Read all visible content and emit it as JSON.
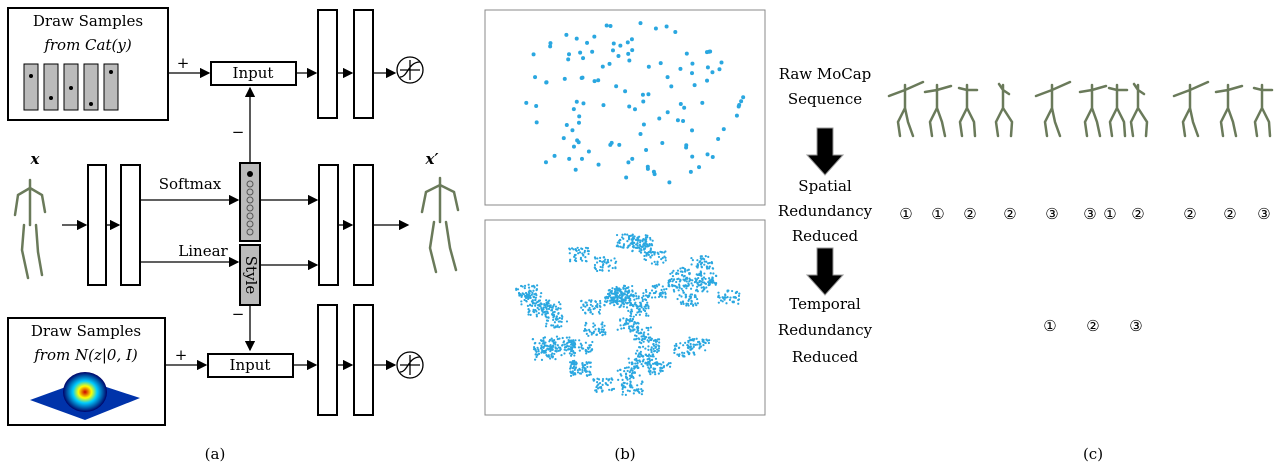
{
  "panel_a": {
    "top_box": {
      "line1": "Draw Samples",
      "line2": "from Cat(y)"
    },
    "bottom_box": {
      "line1": "Draw Samples",
      "line2": "from N(z|0, I)"
    },
    "plus_top": "+",
    "plus_bottom": "+",
    "input_top": "Input",
    "input_bottom": "Input",
    "minus_top": "−",
    "minus_bottom": "−",
    "softmax": "Softmax",
    "linear": "Linear",
    "style": "Style",
    "x_in": "x",
    "x_out": "x′",
    "caption": "(a)"
  },
  "panel_b": {
    "caption": "(b)"
  },
  "panel_c": {
    "raw": [
      "Raw MoCap",
      "Sequence"
    ],
    "spatial": [
      "Spatial",
      "Redundancy",
      "Reduced"
    ],
    "temporal": [
      "Temporal",
      "Redundancy",
      "Reduced"
    ],
    "spatial_marks": [
      "①",
      "①",
      "②",
      "②",
      "③",
      "③",
      "①",
      "②",
      "②",
      "②",
      "③"
    ],
    "temporal_marks": [
      "①",
      "②",
      "③"
    ],
    "caption": "(c)"
  }
}
